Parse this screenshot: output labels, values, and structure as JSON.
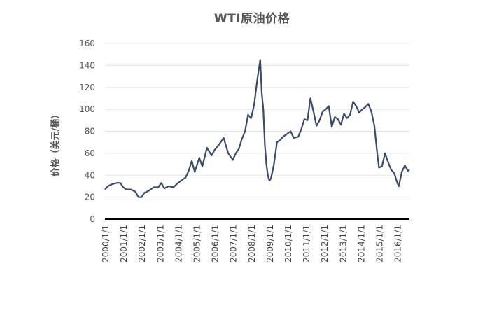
{
  "chart_data": {
    "type": "line",
    "title": "WTI原油价格",
    "xlabel": "",
    "ylabel": "价格（美元/桶）",
    "ylim": [
      0,
      160
    ],
    "yticks": [
      0,
      20,
      40,
      60,
      80,
      100,
      120,
      140,
      160
    ],
    "xticks": [
      "2000/1/1",
      "2001/1/1",
      "2002/1/1",
      "2003/1/1",
      "2004/1/1",
      "2005/1/1",
      "2006/1/1",
      "2007/1/1",
      "2008/1/1",
      "2009/1/1",
      "2010/1/1",
      "2011/1/1",
      "2012/1/1",
      "2013/1/1",
      "2014/1/1",
      "2015/1/1",
      "2016/1/1"
    ],
    "xrange": [
      "2000/1/1",
      "2016/9/1"
    ],
    "grid": true,
    "legend": "none",
    "line_color": "#3b4a6b",
    "series": [
      {
        "x": [
          "2000/1/1",
          "2000/3/1",
          "2000/6/1",
          "2000/9/1",
          "2000/11/1",
          "2001/1/1",
          "2001/3/1",
          "2001/6/1",
          "2001/9/1",
          "2001/11/1",
          "2002/1/1",
          "2002/3/1",
          "2002/6/1",
          "2002/9/1",
          "2002/12/1",
          "2003/2/1",
          "2003/4/1",
          "2003/7/1",
          "2003/10/1",
          "2004/1/1",
          "2004/4/1",
          "2004/6/1",
          "2004/8/1",
          "2004/10/1",
          "2004/12/1",
          "2005/3/1",
          "2005/5/1",
          "2005/8/1",
          "2005/11/1",
          "2006/1/1",
          "2006/4/1",
          "2006/7/1",
          "2006/10/1",
          "2007/1/1",
          "2007/3/1",
          "2007/5/1",
          "2007/7/1",
          "2007/9/1",
          "2007/11/1",
          "2008/1/1",
          "2008/3/1",
          "2008/5/1",
          "2008/7/1",
          "2008/8/1",
          "2008/9/1",
          "2008/10/1",
          "2008/11/1",
          "2008/12/1",
          "2009/1/1",
          "2009/2/1",
          "2009/4/1",
          "2009/6/1",
          "2009/8/1",
          "2009/10/1",
          "2010/1/1",
          "2010/3/1",
          "2010/5/1",
          "2010/8/1",
          "2010/10/1",
          "2010/12/1",
          "2011/2/1",
          "2011/4/1",
          "2011/6/1",
          "2011/8/1",
          "2011/10/1",
          "2011/12/1",
          "2012/2/1",
          "2012/4/1",
          "2012/6/1",
          "2012/8/1",
          "2012/10/1",
          "2012/12/1",
          "2013/2/1",
          "2013/4/1",
          "2013/6/1",
          "2013/8/1",
          "2013/10/1",
          "2013/12/1",
          "2014/2/1",
          "2014/4/1",
          "2014/6/1",
          "2014/8/1",
          "2014/10/1",
          "2014/12/1",
          "2015/1/1",
          "2015/3/1",
          "2015/5/1",
          "2015/7/1",
          "2015/9/1",
          "2015/11/1",
          "2016/1/1",
          "2016/2/1",
          "2016/4/1",
          "2016/6/1",
          "2016/8/1",
          "2016/9/1"
        ],
        "values": [
          27,
          30,
          32,
          33,
          33,
          29,
          27,
          27,
          25,
          20,
          20,
          24,
          26,
          29,
          29,
          33,
          28,
          30,
          29,
          33,
          36,
          38,
          44,
          53,
          43,
          56,
          48,
          65,
          58,
          63,
          68,
          74,
          60,
          54,
          60,
          64,
          73,
          80,
          95,
          92,
          104,
          126,
          145,
          115,
          100,
          68,
          50,
          40,
          35,
          37,
          50,
          70,
          72,
          75,
          78,
          80,
          74,
          75,
          82,
          91,
          90,
          110,
          98,
          85,
          90,
          98,
          100,
          103,
          84,
          93,
          91,
          86,
          96,
          92,
          95,
          107,
          103,
          97,
          100,
          102,
          105,
          98,
          85,
          58,
          47,
          48,
          60,
          52,
          45,
          42,
          33,
          30,
          43,
          49,
          44,
          45
        ]
      }
    ]
  }
}
